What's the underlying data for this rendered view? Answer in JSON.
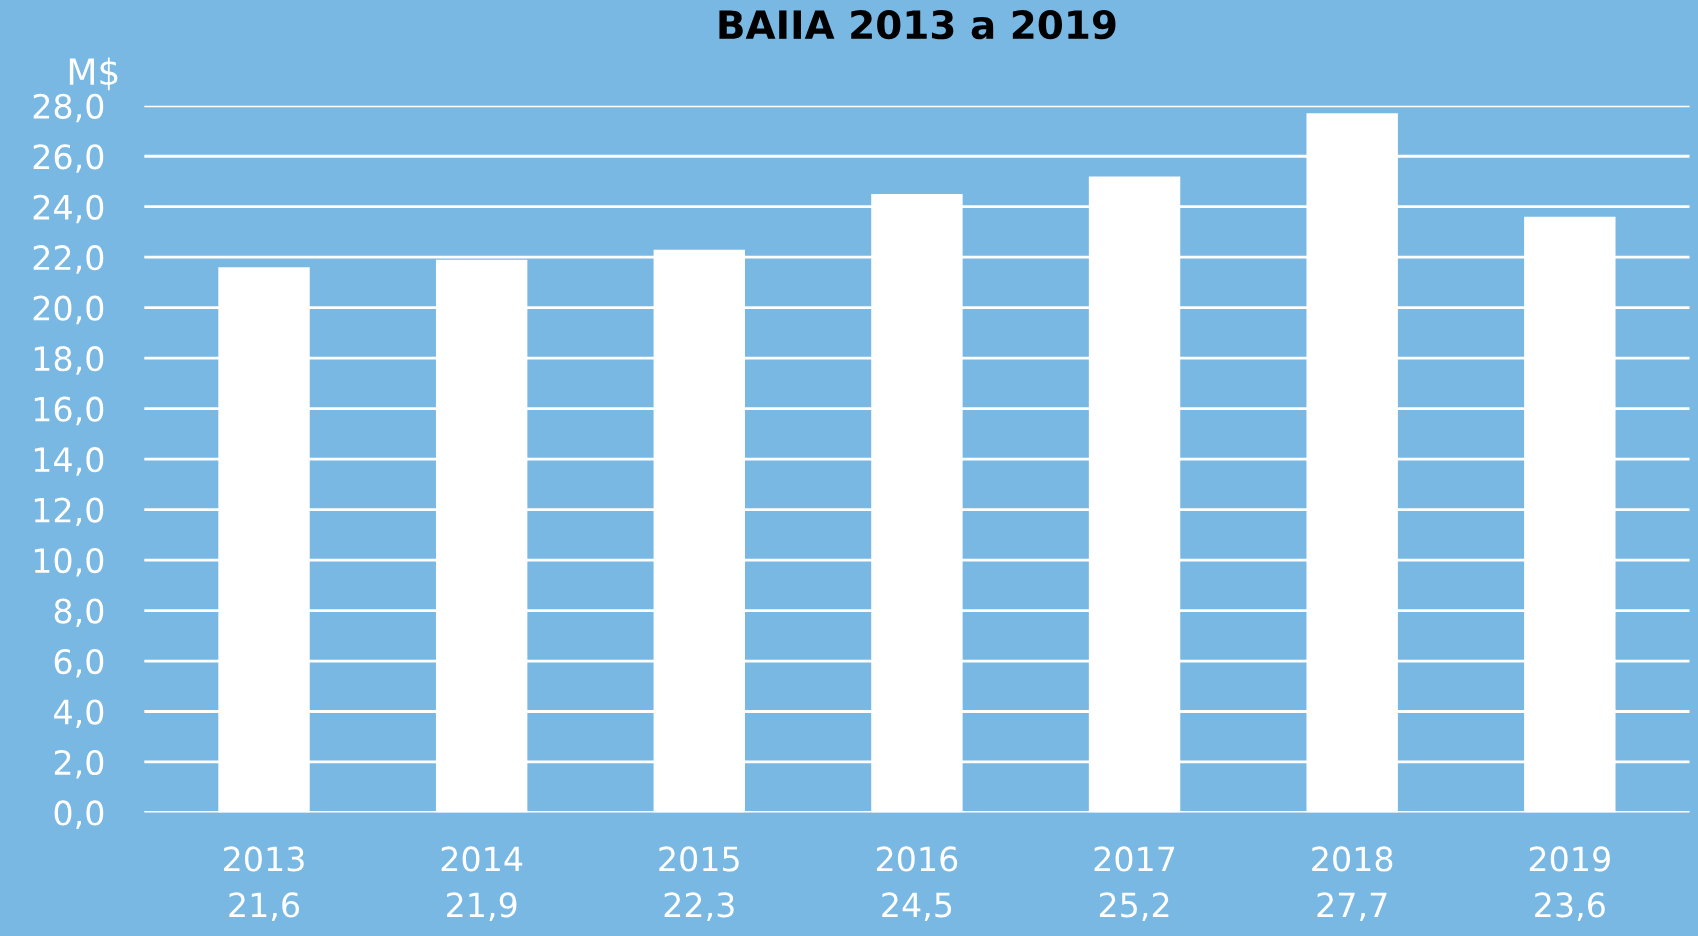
{
  "chart_data": {
    "type": "bar",
    "title": "BAIIA 2013 a 2019",
    "ylabel": "M$",
    "categories": [
      "2013",
      "2014",
      "2015",
      "2016",
      "2017",
      "2018",
      "2019"
    ],
    "values": [
      21.6,
      21.9,
      22.3,
      24.5,
      25.2,
      27.7,
      23.6
    ],
    "value_labels": [
      "21,6",
      "21,9",
      "22,3",
      "24,5",
      "25,2",
      "27,7",
      "23,6"
    ],
    "color": "#ffffff",
    "ylim": [
      0,
      28
    ],
    "yticks": [
      {
        "value": 0,
        "label": "0,0"
      },
      {
        "value": 2,
        "label": "2,0"
      },
      {
        "value": 4,
        "label": "4,0"
      },
      {
        "value": 6,
        "label": "6,0"
      },
      {
        "value": 8,
        "label": "8,0"
      },
      {
        "value": 10,
        "label": "10,0"
      },
      {
        "value": 12,
        "label": "12,0"
      },
      {
        "value": 14,
        "label": "14,0"
      },
      {
        "value": 16,
        "label": "16,0"
      },
      {
        "value": 18,
        "label": "18,0"
      },
      {
        "value": 20,
        "label": "20,0"
      },
      {
        "value": 22,
        "label": "22,0"
      },
      {
        "value": 24,
        "label": "24,0"
      },
      {
        "value": 26,
        "label": "26,0"
      },
      {
        "value": 28,
        "label": "28,0"
      }
    ],
    "grid": "y",
    "legend": false
  }
}
